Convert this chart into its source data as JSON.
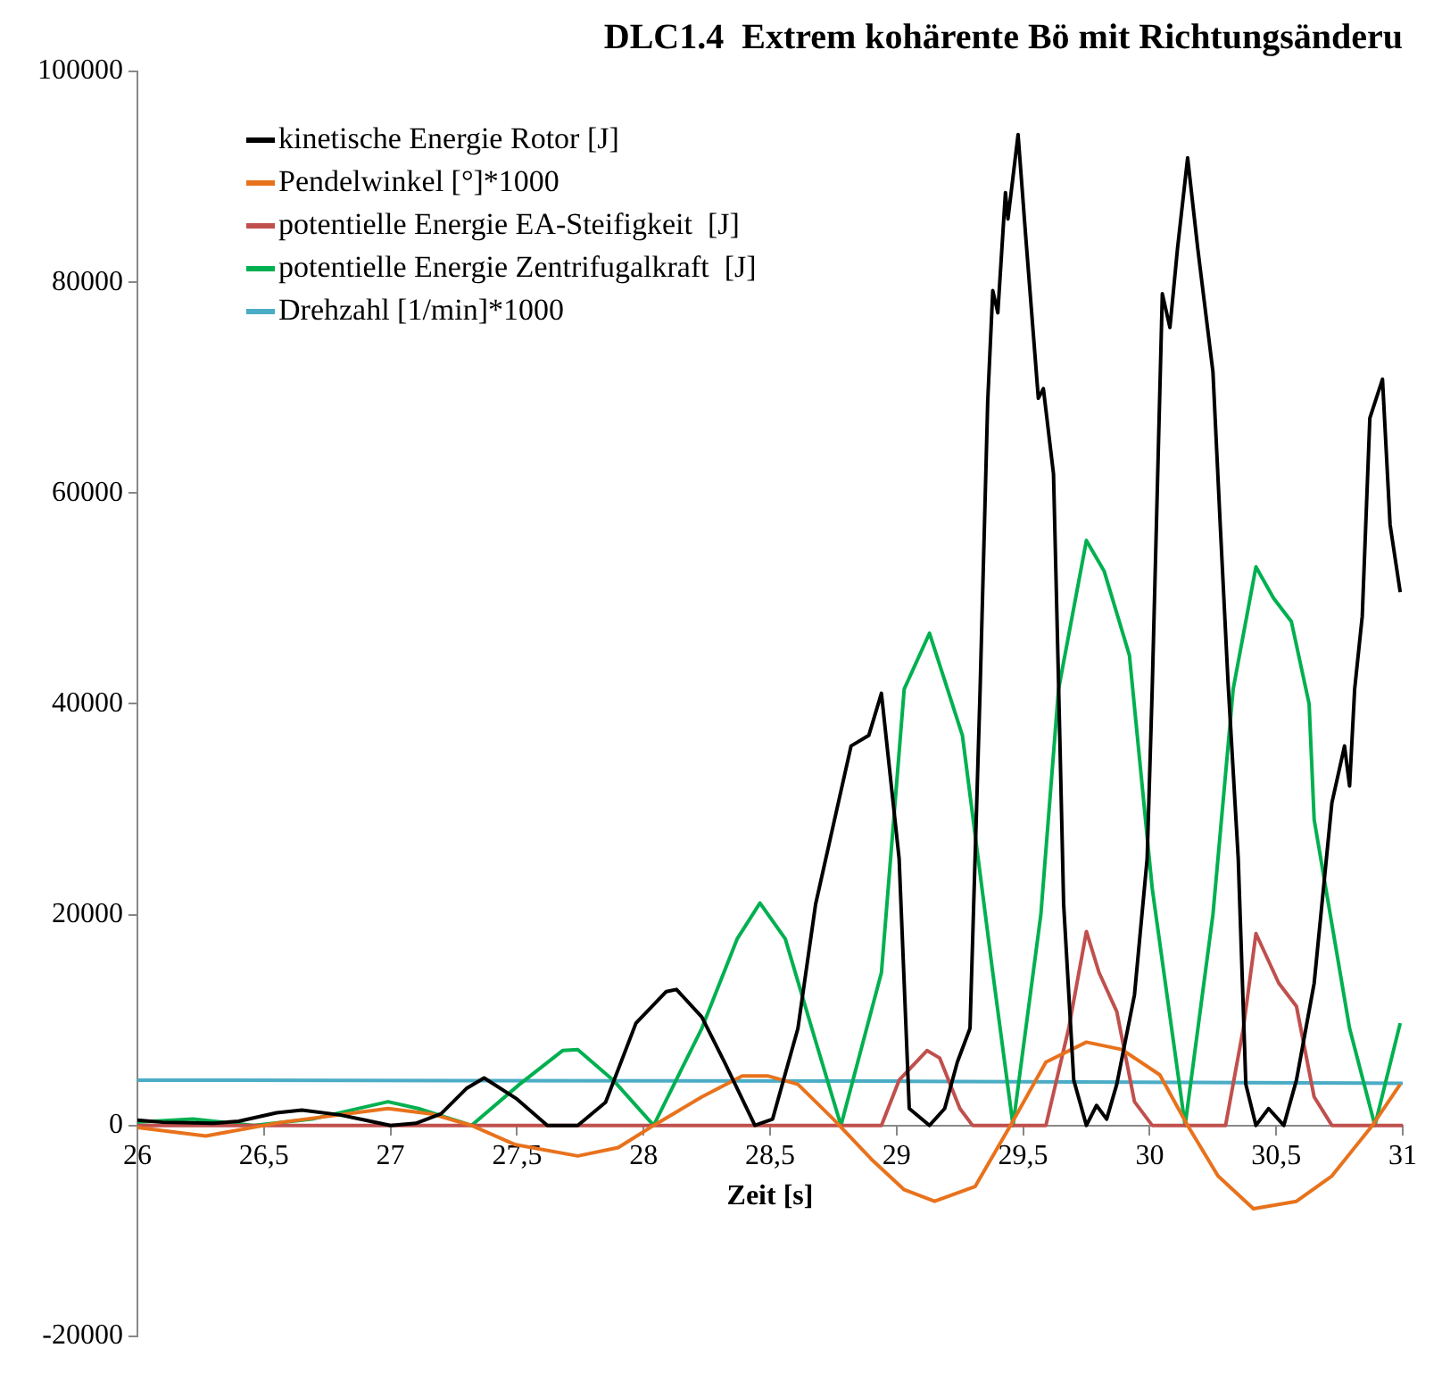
{
  "chart_data": {
    "type": "line",
    "title": "DLC1.4  Extrem kohärente Bö mit Richtungsänderu",
    "xlabel": "Zeit [s]",
    "xlim": [
      26,
      31
    ],
    "xticks": [
      26,
      {
        "value": 26.5,
        "label": "26,5"
      },
      27,
      {
        "value": 27.5,
        "label": "27,5"
      },
      28,
      {
        "value": 28.5,
        "label": "28,5"
      },
      29,
      {
        "value": 29.5,
        "label": "29,5"
      },
      30,
      {
        "value": 30.5,
        "label": "30,5"
      },
      31
    ],
    "ylim": [
      -20000,
      100000
    ],
    "yticks": [
      -20000,
      0,
      20000,
      40000,
      60000,
      80000,
      100000
    ],
    "grid": false,
    "legend": "top left",
    "series": [
      {
        "name": "kinetische Energie Rotor [J]",
        "color": "#000000",
        "x": [
          26,
          26.1,
          26.3,
          26.4,
          26.55,
          26.65,
          26.8,
          26.9,
          27,
          27.1,
          27.2,
          27.3,
          27.37,
          27.5,
          27.62,
          27.74,
          27.85,
          27.97,
          28.09,
          28.13,
          28.23,
          28.32,
          28.44,
          28.51,
          28.61,
          28.68,
          28.75,
          28.82,
          28.89,
          28.94,
          29.01,
          29.05,
          29.13,
          29.19,
          29.24,
          29.29,
          29.31,
          29.33,
          29.36,
          29.38,
          29.4,
          29.43,
          29.44,
          29.48,
          29.51,
          29.56,
          29.58,
          29.62,
          29.64,
          29.66,
          29.7,
          29.75,
          29.79,
          29.83,
          29.87,
          29.94,
          29.99,
          30.01,
          30.05,
          30.08,
          30.11,
          30.15,
          30.19,
          30.25,
          30.28,
          30.31,
          30.35,
          30.38,
          30.42,
          30.47,
          30.53,
          30.58,
          30.65,
          30.72,
          30.77,
          30.79,
          30.81,
          30.84,
          30.87,
          30.92,
          30.95,
          30.99
        ],
        "values": [
          500,
          300,
          200,
          400,
          1200,
          1450,
          1000,
          500,
          0,
          200,
          1100,
          3500,
          4500,
          2500,
          0,
          0,
          2200,
          9700,
          12700,
          12900,
          10300,
          6000,
          0,
          600,
          9200,
          21000,
          28500,
          36000,
          37000,
          41000,
          25300,
          1600,
          0,
          1600,
          6000,
          9200,
          25300,
          41400,
          68700,
          79200,
          77100,
          88500,
          86000,
          94000,
          84400,
          69000,
          69900,
          61800,
          41900,
          21000,
          4300,
          0,
          1900,
          600,
          3900,
          12400,
          25300,
          41400,
          78900,
          75700,
          83200,
          91800,
          83200,
          71500,
          56400,
          41900,
          25300,
          3900,
          0,
          1600,
          0,
          4300,
          13500,
          30600,
          36000,
          32200,
          41400,
          48300,
          67100,
          70800,
          57000,
          50600
        ]
      },
      {
        "name": "Pendelwinkel [°]*1000",
        "color": "#e8721c",
        "x": [
          26,
          26.27,
          26.57,
          26.99,
          27.16,
          27.32,
          27.49,
          27.74,
          27.9,
          28.04,
          28.23,
          28.39,
          28.49,
          28.61,
          28.75,
          28.9,
          29.03,
          29.15,
          29.31,
          29.45,
          29.59,
          29.75,
          29.89,
          30.04,
          30.15,
          30.27,
          30.41,
          30.58,
          30.72,
          30.88,
          30.99
        ],
        "values": [
          -200,
          -1000,
          300,
          1600,
          1100,
          0,
          -1800,
          -2900,
          -2100,
          0,
          2700,
          4700,
          4700,
          3900,
          600,
          -3200,
          -6100,
          -7200,
          -5800,
          0,
          6000,
          7900,
          7200,
          4800,
          0,
          -4800,
          -7900,
          -7200,
          -4800,
          0,
          3900
        ]
      },
      {
        "name": "potentielle Energie EA-Steifigkeit  [J]",
        "color": "#c0504d",
        "x": [
          26,
          28.94,
          29.01,
          29.12,
          29.17,
          29.25,
          29.3,
          29.59,
          29.68,
          29.75,
          29.8,
          29.87,
          29.94,
          30.01,
          30.3,
          30.37,
          30.42,
          30.51,
          30.58,
          30.65,
          30.72,
          31
        ],
        "values": [
          0,
          0,
          4300,
          7100,
          6400,
          1600,
          0,
          0,
          9200,
          18400,
          14500,
          10800,
          2250,
          0,
          0,
          9200,
          18200,
          13500,
          11300,
          2700,
          0,
          0
        ]
      },
      {
        "name": "potentielle Energie Zentrifugalkraft  [J]",
        "color": "#00b050",
        "x": [
          26,
          26.22,
          26.46,
          26.69,
          26.99,
          27.11,
          27.32,
          27.51,
          27.68,
          27.74,
          27.88,
          28.04,
          28.23,
          28.37,
          28.46,
          28.56,
          28.68,
          28.78,
          28.94,
          29.03,
          29.13,
          29.26,
          29.38,
          29.46,
          29.57,
          29.64,
          29.75,
          29.82,
          29.92,
          30.01,
          30.14,
          30.25,
          30.33,
          30.42,
          30.49,
          30.56,
          30.63,
          30.65,
          30.79,
          30.89,
          30.99
        ],
        "values": [
          300,
          600,
          0,
          600,
          2250,
          1600,
          0,
          3900,
          7100,
          7200,
          4300,
          0,
          9200,
          17700,
          21100,
          17700,
          8000,
          0,
          14500,
          41400,
          46700,
          37000,
          14500,
          0,
          20000,
          41400,
          55500,
          52600,
          44600,
          22500,
          0,
          20000,
          41400,
          53000,
          50000,
          47800,
          40000,
          29000,
          9200,
          0,
          9700
        ]
      },
      {
        "name": "Drehzahl [1/min]*1000",
        "color": "#4bacc6",
        "x": [
          26,
          29,
          31
        ],
        "values": [
          4300,
          4200,
          4000
        ]
      }
    ]
  }
}
